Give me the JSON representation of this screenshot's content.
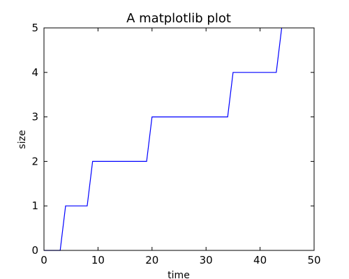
{
  "chart_data": {
    "type": "line",
    "title": "A matplotlib plot",
    "xlabel": "time",
    "ylabel": "size",
    "xlim": [
      0,
      50
    ],
    "ylim": [
      0,
      5
    ],
    "xticks": [
      0,
      10,
      20,
      30,
      40,
      50
    ],
    "yticks": [
      0,
      1,
      2,
      3,
      4,
      5
    ],
    "grid": false,
    "series": [
      {
        "color": "#0000ff",
        "x": [
          0,
          3,
          4,
          8,
          9,
          19,
          20,
          34,
          35,
          43,
          44
        ],
        "y": [
          0,
          0,
          1,
          1,
          2,
          2,
          3,
          3,
          4,
          4,
          5
        ]
      }
    ]
  }
}
